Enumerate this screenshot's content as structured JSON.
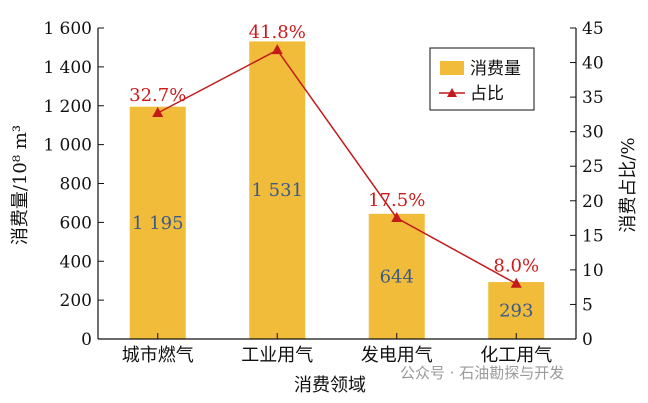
{
  "chart_data": {
    "type": "bar",
    "categories": [
      "城市燃气",
      "工业用气",
      "发电用气",
      "化工用气"
    ],
    "series": [
      {
        "name": "消费量",
        "axis": "left",
        "type": "bar",
        "values": [
          1195,
          1531,
          644,
          293
        ],
        "labels": [
          "1 195",
          "1 531",
          "644",
          "293"
        ]
      },
      {
        "name": "占比",
        "axis": "right",
        "type": "line",
        "values": [
          32.7,
          41.8,
          17.5,
          8.0
        ],
        "labels": [
          "32.7%",
          "41.8%",
          "17.5%",
          "8.0%"
        ]
      }
    ],
    "xlabel": "消费领域",
    "ylabel": "消费量/10⁸ m³",
    "ylabel_right": "消费占比/%",
    "ylim": [
      0,
      1600
    ],
    "ylim_right": [
      0,
      45
    ],
    "yticks": [
      0,
      200,
      400,
      600,
      800,
      1000,
      1200,
      1400,
      1600
    ],
    "ytick_labels": [
      "0",
      "200",
      "400",
      "600",
      "800",
      "1 000",
      "1 200",
      "1 400",
      "1 600"
    ],
    "yticks_right": [
      0,
      5,
      10,
      15,
      20,
      25,
      30,
      35,
      40,
      45
    ],
    "ytick_labels_right": [
      "0",
      "5",
      "10",
      "15",
      "20",
      "25",
      "30",
      "35",
      "40",
      "45"
    ],
    "legend_position": "top-right",
    "grid": false,
    "colors": {
      "bar": "#f0bc3a",
      "line": "#c41a1a",
      "axis": "#111111"
    }
  },
  "watermark": "公众号 · 石油勘探与开发"
}
